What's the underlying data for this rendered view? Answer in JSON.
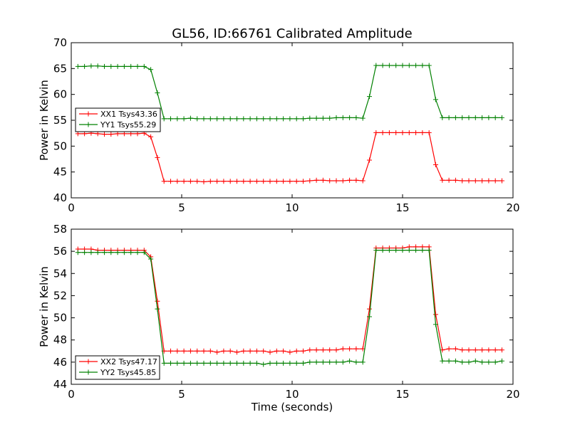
{
  "figure": {
    "title": "GL56, ID:66761 Calibrated Amplitude"
  },
  "chart_data": [
    {
      "type": "line",
      "ylabel": "Power in Kelvin",
      "xlabel": "",
      "xlim": [
        0,
        20
      ],
      "ylim": [
        40,
        70
      ],
      "xticks": [
        0,
        5,
        10,
        15,
        20
      ],
      "yticks": [
        40,
        45,
        50,
        55,
        60,
        65,
        70
      ],
      "legend_position": "center-left",
      "grid": false,
      "x": [
        0.3,
        0.6,
        0.9,
        1.2,
        1.5,
        1.8,
        2.1,
        2.4,
        2.7,
        3.0,
        3.3,
        3.6,
        3.9,
        4.2,
        4.5,
        4.8,
        5.1,
        5.4,
        5.7,
        6.0,
        6.3,
        6.6,
        6.9,
        7.2,
        7.5,
        7.8,
        8.1,
        8.4,
        8.7,
        9.0,
        9.3,
        9.6,
        9.9,
        10.2,
        10.5,
        10.8,
        11.1,
        11.4,
        11.7,
        12.0,
        12.3,
        12.6,
        12.9,
        13.2,
        13.5,
        13.8,
        14.1,
        14.4,
        14.7,
        15.0,
        15.3,
        15.6,
        15.9,
        16.2,
        16.5,
        16.8,
        17.1,
        17.4,
        17.7,
        18.0,
        18.3,
        18.6,
        18.9,
        19.2,
        19.5
      ],
      "series": [
        {
          "name": "XX1 Tsys43.36",
          "color": "#ff0000",
          "values": [
            52.4,
            52.4,
            52.5,
            52.4,
            52.3,
            52.3,
            52.4,
            52.4,
            52.4,
            52.4,
            52.5,
            51.8,
            47.8,
            43.2,
            43.2,
            43.2,
            43.2,
            43.2,
            43.2,
            43.1,
            43.2,
            43.2,
            43.2,
            43.2,
            43.2,
            43.2,
            43.2,
            43.2,
            43.2,
            43.2,
            43.2,
            43.2,
            43.2,
            43.2,
            43.2,
            43.3,
            43.4,
            43.4,
            43.3,
            43.3,
            43.3,
            43.4,
            43.4,
            43.3,
            47.3,
            52.6,
            52.6,
            52.6,
            52.6,
            52.6,
            52.6,
            52.6,
            52.6,
            52.6,
            46.4,
            43.4,
            43.4,
            43.4,
            43.3,
            43.3,
            43.3,
            43.3,
            43.3,
            43.3,
            43.3
          ]
        },
        {
          "name": "YY1 Tsys55.29",
          "color": "#008000",
          "values": [
            65.4,
            65.4,
            65.5,
            65.5,
            65.4,
            65.4,
            65.4,
            65.4,
            65.4,
            65.4,
            65.4,
            64.8,
            60.3,
            55.3,
            55.3,
            55.3,
            55.3,
            55.4,
            55.3,
            55.3,
            55.3,
            55.3,
            55.3,
            55.3,
            55.3,
            55.3,
            55.3,
            55.3,
            55.3,
            55.3,
            55.3,
            55.3,
            55.3,
            55.3,
            55.3,
            55.4,
            55.4,
            55.4,
            55.4,
            55.5,
            55.5,
            55.5,
            55.5,
            55.4,
            59.6,
            65.6,
            65.6,
            65.6,
            65.6,
            65.6,
            65.6,
            65.6,
            65.6,
            65.6,
            59.0,
            55.5,
            55.5,
            55.5,
            55.5,
            55.5,
            55.5,
            55.5,
            55.5,
            55.5,
            55.5
          ]
        }
      ]
    },
    {
      "type": "line",
      "ylabel": "Power in Kelvin",
      "xlabel": "Time (seconds)",
      "xlim": [
        0,
        20
      ],
      "ylim": [
        44,
        58
      ],
      "xticks": [
        0,
        5,
        10,
        15,
        20
      ],
      "yticks": [
        44,
        46,
        48,
        50,
        52,
        54,
        56,
        58
      ],
      "legend_position": "lower-left",
      "grid": false,
      "x": [
        0.3,
        0.6,
        0.9,
        1.2,
        1.5,
        1.8,
        2.1,
        2.4,
        2.7,
        3.0,
        3.3,
        3.6,
        3.9,
        4.2,
        4.5,
        4.8,
        5.1,
        5.4,
        5.7,
        6.0,
        6.3,
        6.6,
        6.9,
        7.2,
        7.5,
        7.8,
        8.1,
        8.4,
        8.7,
        9.0,
        9.3,
        9.6,
        9.9,
        10.2,
        10.5,
        10.8,
        11.1,
        11.4,
        11.7,
        12.0,
        12.3,
        12.6,
        12.9,
        13.2,
        13.5,
        13.8,
        14.1,
        14.4,
        14.7,
        15.0,
        15.3,
        15.6,
        15.9,
        16.2,
        16.5,
        16.8,
        17.1,
        17.4,
        17.7,
        18.0,
        18.3,
        18.6,
        18.9,
        19.2,
        19.5
      ],
      "series": [
        {
          "name": "XX2 Tsys47.17",
          "color": "#ff0000",
          "values": [
            56.2,
            56.2,
            56.2,
            56.1,
            56.1,
            56.1,
            56.1,
            56.1,
            56.1,
            56.1,
            56.1,
            55.5,
            51.5,
            47.0,
            47.0,
            47.0,
            47.0,
            47.0,
            47.0,
            47.0,
            47.0,
            46.9,
            47.0,
            47.0,
            46.9,
            47.0,
            47.0,
            47.0,
            47.0,
            46.9,
            47.0,
            47.0,
            46.9,
            47.0,
            47.0,
            47.1,
            47.1,
            47.1,
            47.1,
            47.1,
            47.2,
            47.2,
            47.2,
            47.2,
            50.8,
            56.3,
            56.3,
            56.3,
            56.3,
            56.3,
            56.4,
            56.4,
            56.4,
            56.4,
            50.3,
            47.1,
            47.2,
            47.2,
            47.1,
            47.1,
            47.1,
            47.1,
            47.1,
            47.1,
            47.1
          ]
        },
        {
          "name": "YY2 Tsys45.85",
          "color": "#008000",
          "values": [
            55.9,
            55.9,
            55.9,
            55.9,
            55.9,
            55.9,
            55.9,
            55.9,
            55.9,
            55.9,
            55.9,
            55.3,
            50.8,
            45.9,
            45.9,
            45.9,
            45.9,
            45.9,
            45.9,
            45.9,
            45.9,
            45.9,
            45.9,
            45.9,
            45.9,
            45.9,
            45.9,
            45.9,
            45.8,
            45.9,
            45.9,
            45.9,
            45.9,
            45.9,
            45.9,
            46.0,
            46.0,
            46.0,
            46.0,
            46.0,
            46.0,
            46.1,
            46.0,
            46.0,
            50.1,
            56.1,
            56.1,
            56.1,
            56.1,
            56.1,
            56.1,
            56.1,
            56.1,
            56.1,
            49.4,
            46.1,
            46.1,
            46.1,
            46.0,
            46.0,
            46.1,
            46.0,
            46.0,
            46.0,
            46.1
          ]
        }
      ]
    }
  ]
}
